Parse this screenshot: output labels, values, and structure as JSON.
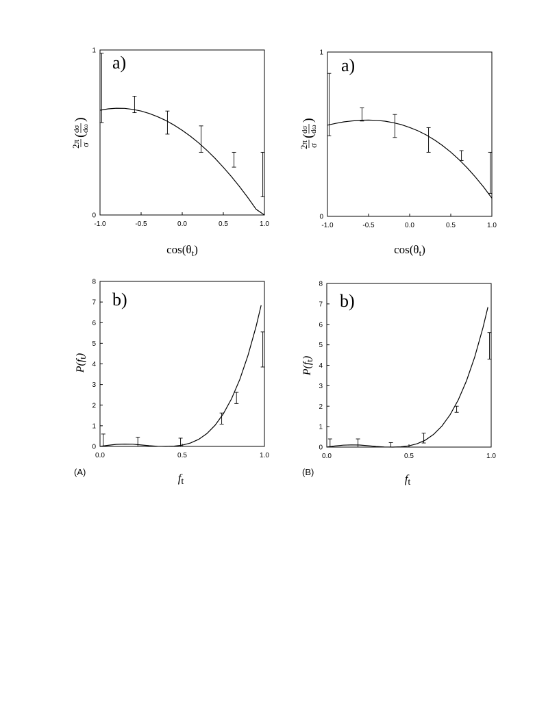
{
  "chart_data": [
    {
      "id": "A-a",
      "type": "line",
      "panel_label": "a)",
      "xlabel": "cos(θt)",
      "ylabel": "2π/σ (dσ/dω)",
      "xlim": [
        -1.0,
        1.0
      ],
      "ylim": [
        0,
        1
      ],
      "xticks": [
        -1.0,
        -0.5,
        0.0,
        0.5,
        1.0
      ],
      "xtick_labels": [
        "-1.0",
        "-0.5",
        "0.0",
        "0.5",
        "1.0"
      ],
      "yticks": [
        0,
        1
      ],
      "ytick_labels": [
        "0",
        "1"
      ],
      "grid": false,
      "curve": [
        [
          -1.0,
          0.635
        ],
        [
          -0.9,
          0.643
        ],
        [
          -0.8,
          0.647
        ],
        [
          -0.7,
          0.646
        ],
        [
          -0.6,
          0.64
        ],
        [
          -0.5,
          0.63
        ],
        [
          -0.4,
          0.615
        ],
        [
          -0.3,
          0.596
        ],
        [
          -0.2,
          0.573
        ],
        [
          -0.1,
          0.545
        ],
        [
          0.0,
          0.513
        ],
        [
          0.1,
          0.477
        ],
        [
          0.2,
          0.437
        ],
        [
          0.3,
          0.392
        ],
        [
          0.4,
          0.343
        ],
        [
          0.5,
          0.289
        ],
        [
          0.6,
          0.232
        ],
        [
          0.7,
          0.17
        ],
        [
          0.8,
          0.104
        ],
        [
          0.9,
          0.034
        ],
        [
          1.0,
          -0.04
        ]
      ],
      "error_bars": [
        {
          "x": -0.98,
          "low": 0.56,
          "high": 0.98
        },
        {
          "x": -0.58,
          "low": 0.62,
          "high": 0.72
        },
        {
          "x": -0.18,
          "low": 0.49,
          "high": 0.63
        },
        {
          "x": 0.23,
          "low": 0.38,
          "high": 0.54
        },
        {
          "x": 0.63,
          "low": 0.29,
          "high": 0.38
        },
        {
          "x": 0.98,
          "low": 0.11,
          "high": 0.38
        }
      ]
    },
    {
      "id": "B-a",
      "type": "line",
      "panel_label": "a)",
      "xlabel": "cos(θt)",
      "ylabel": "2π/σ (dσ/dω)",
      "xlim": [
        -1.0,
        1.0
      ],
      "ylim": [
        0,
        1
      ],
      "xticks": [
        -1.0,
        -0.5,
        0.0,
        0.5,
        1.0
      ],
      "xtick_labels": [
        "-1.0",
        "-0.5",
        "0.0",
        "0.5",
        "1.0"
      ],
      "yticks": [
        0,
        1
      ],
      "ytick_labels": [
        "0",
        "1"
      ],
      "grid": false,
      "curve": [
        [
          -1.0,
          0.555
        ],
        [
          -0.9,
          0.566
        ],
        [
          -0.8,
          0.575
        ],
        [
          -0.7,
          0.581
        ],
        [
          -0.6,
          0.585
        ],
        [
          -0.5,
          0.586
        ],
        [
          -0.4,
          0.584
        ],
        [
          -0.3,
          0.579
        ],
        [
          -0.2,
          0.57
        ],
        [
          -0.1,
          0.558
        ],
        [
          0.0,
          0.541
        ],
        [
          0.1,
          0.521
        ],
        [
          0.2,
          0.496
        ],
        [
          0.3,
          0.466
        ],
        [
          0.4,
          0.431
        ],
        [
          0.5,
          0.391
        ],
        [
          0.6,
          0.346
        ],
        [
          0.7,
          0.295
        ],
        [
          0.8,
          0.239
        ],
        [
          0.9,
          0.178
        ],
        [
          1.0,
          0.111
        ]
      ],
      "error_bars": [
        {
          "x": -0.98,
          "low": 0.49,
          "high": 0.87
        },
        {
          "x": -0.58,
          "low": 0.58,
          "high": 0.66
        },
        {
          "x": -0.18,
          "low": 0.48,
          "high": 0.62
        },
        {
          "x": 0.23,
          "low": 0.39,
          "high": 0.54
        },
        {
          "x": 0.63,
          "low": 0.34,
          "high": 0.4
        },
        {
          "x": 0.98,
          "low": 0.14,
          "high": 0.39
        }
      ]
    },
    {
      "id": "A-b",
      "type": "line",
      "panel_label": "b)",
      "xlabel": "ft",
      "ylabel": "P(ft)",
      "xlim": [
        0.0,
        1.0
      ],
      "ylim": [
        0,
        8
      ],
      "xticks": [
        0.0,
        0.5,
        1.0
      ],
      "xtick_labels": [
        "0.0",
        "0.5",
        "1.0"
      ],
      "yticks": [
        0,
        1,
        2,
        3,
        4,
        5,
        6,
        7,
        8
      ],
      "ytick_labels": [
        "0",
        "1",
        "2",
        "3",
        "4",
        "5",
        "6",
        "7",
        "8"
      ],
      "grid": false,
      "curve": [
        [
          0.0,
          0.0
        ],
        [
          0.05,
          0.053
        ],
        [
          0.1,
          0.098
        ],
        [
          0.15,
          0.113
        ],
        [
          0.2,
          0.105
        ],
        [
          0.25,
          0.071
        ],
        [
          0.3,
          0.034
        ],
        [
          0.35,
          0.008
        ],
        [
          0.4,
          0.0
        ],
        [
          0.45,
          0.012
        ],
        [
          0.5,
          0.06
        ],
        [
          0.55,
          0.164
        ],
        [
          0.6,
          0.343
        ],
        [
          0.65,
          0.622
        ],
        [
          0.7,
          1.025
        ],
        [
          0.75,
          1.58
        ],
        [
          0.8,
          2.31
        ],
        [
          0.85,
          3.244
        ],
        [
          0.9,
          4.41
        ],
        [
          0.95,
          5.837
        ],
        [
          0.98,
          6.84
        ]
      ],
      "error_bars": [
        {
          "x": 0.02,
          "low": 0.0,
          "high": 0.6
        },
        {
          "x": 0.23,
          "low": 0.0,
          "high": 0.45
        },
        {
          "x": 0.49,
          "low": 0.0,
          "high": 0.4
        },
        {
          "x": 0.74,
          "low": 1.08,
          "high": 1.62
        },
        {
          "x": 0.83,
          "low": 2.08,
          "high": 2.62
        },
        {
          "x": 0.99,
          "low": 3.85,
          "high": 5.55
        }
      ]
    },
    {
      "id": "B-b",
      "type": "line",
      "panel_label": "b)",
      "xlabel": "ft",
      "ylabel": "P(ft)",
      "xlim": [
        0.0,
        1.0
      ],
      "ylim": [
        0,
        8
      ],
      "xticks": [
        0.0,
        0.5,
        1.0
      ],
      "xtick_labels": [
        "0.0",
        "0.5",
        "1.0"
      ],
      "yticks": [
        0,
        1,
        2,
        3,
        4,
        5,
        6,
        7,
        8
      ],
      "ytick_labels": [
        "0",
        "1",
        "2",
        "3",
        "4",
        "5",
        "6",
        "7",
        "8"
      ],
      "grid": false,
      "curve": [
        [
          0.0,
          0.0
        ],
        [
          0.05,
          0.055
        ],
        [
          0.1,
          0.093
        ],
        [
          0.15,
          0.108
        ],
        [
          0.2,
          0.1
        ],
        [
          0.25,
          0.066
        ],
        [
          0.3,
          0.03
        ],
        [
          0.35,
          0.007
        ],
        [
          0.4,
          0.0
        ],
        [
          0.45,
          0.012
        ],
        [
          0.5,
          0.06
        ],
        [
          0.55,
          0.164
        ],
        [
          0.6,
          0.343
        ],
        [
          0.65,
          0.622
        ],
        [
          0.7,
          1.025
        ],
        [
          0.75,
          1.58
        ],
        [
          0.8,
          2.31
        ],
        [
          0.85,
          3.244
        ],
        [
          0.9,
          4.41
        ],
        [
          0.95,
          5.837
        ],
        [
          0.98,
          6.84
        ]
      ],
      "error_bars": [
        {
          "x": 0.02,
          "low": 0.0,
          "high": 0.4
        },
        {
          "x": 0.19,
          "low": 0.0,
          "high": 0.4
        },
        {
          "x": 0.39,
          "low": 0.0,
          "high": 0.22
        },
        {
          "x": 0.59,
          "low": 0.2,
          "high": 0.68
        },
        {
          "x": 0.79,
          "low": 1.7,
          "high": 2.0
        },
        {
          "x": 0.99,
          "low": 4.3,
          "high": 5.6
        }
      ]
    }
  ],
  "panel_tags": {
    "A": "(A)",
    "B": "(B)"
  }
}
